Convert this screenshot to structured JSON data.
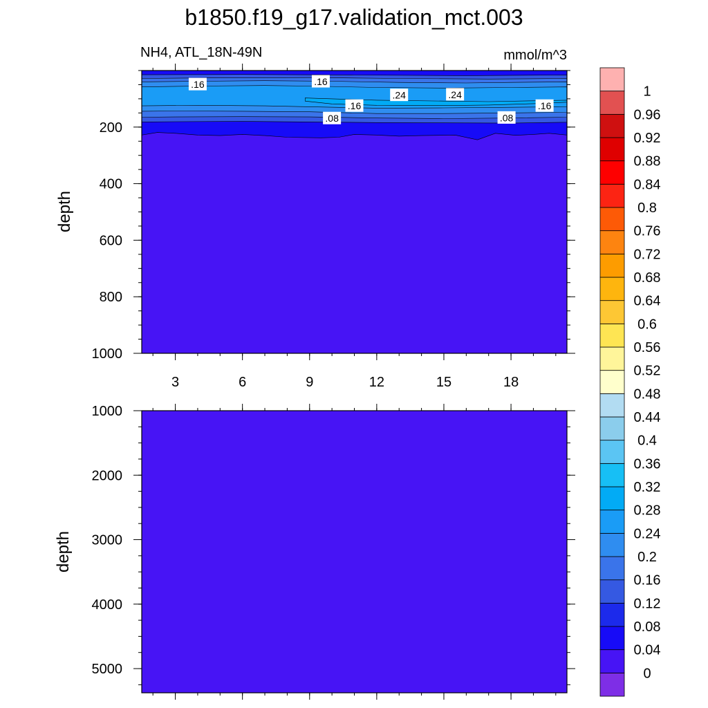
{
  "title": "b1850.f19_g17.validation_mct.003",
  "colors": {
    "levels": [
      "#7e2ee6",
      "#4714f5",
      "#170bf7",
      "#1c2aeb",
      "#3559e2",
      "#3a74ea",
      "#2f8df0",
      "#1a9cf6",
      "#02abf5",
      "#17bff5",
      "#5bc5f3",
      "#8bcdec",
      "#b2dcf2",
      "#ffffcc",
      "#fff59a",
      "#fee553",
      "#fdc734",
      "#feb50e",
      "#fd9c00",
      "#fd8410",
      "#fd5a06",
      "#fc2413",
      "#fe0000",
      "#df0000",
      "#cf1010",
      "#e25151",
      "#feb1b0"
    ],
    "background_fill": "#4714f5",
    "contour_line": "#000000"
  },
  "chart_data": [
    {
      "type": "heatmap",
      "panel": "upper",
      "left_title": "NH4, ATL_18N-49N",
      "right_title": "mmol/m^3",
      "ylabel": "depth",
      "y_reversed": true,
      "ylim": [
        0,
        1000
      ],
      "y_ticks": [
        "200",
        "400",
        "600",
        "800",
        "1000"
      ],
      "x_ticks": [
        "3",
        "6",
        "9",
        "12",
        "15",
        "18"
      ],
      "xlim": [
        1.5,
        20.5
      ],
      "layers": [
        {
          "range": ">0.24",
          "top": [
            [
              8.8,
              97
            ],
            [
              10,
              100
            ],
            [
              12,
              105
            ],
            [
              15,
              108
            ],
            [
              17,
              110
            ],
            [
              19,
              107
            ],
            [
              20.5,
              105
            ]
          ],
          "bottom": [
            [
              20.5,
              112
            ],
            [
              19,
              117
            ],
            [
              17,
              122
            ],
            [
              15,
              124
            ],
            [
              12,
              123
            ],
            [
              10,
              118
            ],
            [
              8.8,
              108
            ]
          ]
        },
        {
          "range": "0.20-0.24",
          "top": [
            [
              1.5,
              58
            ],
            [
              4,
              55
            ],
            [
              7,
              53
            ],
            [
              9,
              55
            ],
            [
              12,
              60
            ],
            [
              15,
              62
            ],
            [
              18,
              60
            ],
            [
              20.5,
              58
            ]
          ],
          "bottom": [
            [
              20.5,
              128
            ],
            [
              18,
              130
            ],
            [
              15,
              132
            ],
            [
              12,
              133
            ],
            [
              9,
              128
            ],
            [
              7,
              125
            ],
            [
              4,
              123
            ],
            [
              1.5,
              125
            ]
          ]
        },
        {
          "range": "0.16-0.20",
          "top": [
            [
              1.5,
              40
            ],
            [
              4,
              38
            ],
            [
              7,
              36
            ],
            [
              10,
              38
            ],
            [
              13,
              42
            ],
            [
              16,
              44
            ],
            [
              18,
              42
            ],
            [
              20.5,
              40
            ]
          ],
          "bottom": [
            [
              20.5,
              148
            ],
            [
              18,
              150
            ],
            [
              15,
              152
            ],
            [
              12,
              152
            ],
            [
              9,
              146
            ],
            [
              6,
              144
            ],
            [
              3,
              143
            ],
            [
              1.5,
              144
            ]
          ]
        },
        {
          "range": "0.12-0.16",
          "top": [
            [
              1.5,
              28
            ],
            [
              5,
              26
            ],
            [
              9,
              25
            ],
            [
              13,
              28
            ],
            [
              17,
              30
            ],
            [
              20.5,
              28
            ]
          ],
          "bottom": [
            [
              20.5,
              165
            ],
            [
              18,
              168
            ],
            [
              15,
              170
            ],
            [
              12,
              168
            ],
            [
              9,
              164
            ],
            [
              6,
              163
            ],
            [
              3,
              164
            ],
            [
              1.5,
              165
            ]
          ]
        },
        {
          "range": "0.08-0.12",
          "top": [
            [
              1.5,
              15
            ],
            [
              6,
              14
            ],
            [
              11,
              16
            ],
            [
              16,
              18
            ],
            [
              20.5,
              16
            ]
          ],
          "bottom": [
            [
              20.5,
              183
            ],
            [
              18,
              186
            ],
            [
              15,
              185
            ],
            [
              12,
              184
            ],
            [
              9,
              182
            ],
            [
              6,
              180
            ],
            [
              3,
              181
            ],
            [
              1.5,
              182
            ]
          ]
        },
        {
          "range": "0.04-0.08",
          "top": [
            [
              1.5,
              0
            ],
            [
              20.5,
              0
            ]
          ],
          "bottom": [
            [
              20.5,
              228
            ],
            [
              19.7,
              222
            ],
            [
              19,
              226
            ],
            [
              18.2,
              229
            ],
            [
              17.3,
              222
            ],
            [
              16.5,
              245
            ],
            [
              15.5,
              228
            ],
            [
              14,
              230
            ],
            [
              13,
              232
            ],
            [
              12,
              228
            ],
            [
              11,
              226
            ],
            [
              10.3,
              236
            ],
            [
              9.5,
              238
            ],
            [
              8,
              236
            ],
            [
              7,
              230
            ],
            [
              6,
              226
            ],
            [
              5,
              230
            ],
            [
              4,
              228
            ],
            [
              3,
              222
            ],
            [
              2.2,
              219
            ],
            [
              1.5,
              228
            ]
          ]
        }
      ],
      "contour_labels": [
        {
          "text": ".16",
          "x": 4,
          "y": 48
        },
        {
          "text": ".16",
          "x": 9.5,
          "y": 38
        },
        {
          "text": ".24",
          "x": 13,
          "y": 86
        },
        {
          "text": ".24",
          "x": 15.5,
          "y": 84
        },
        {
          "text": ".16",
          "x": 11,
          "y": 124
        },
        {
          "text": ".16",
          "x": 19.5,
          "y": 124
        },
        {
          "text": ".08",
          "x": 10,
          "y": 168
        },
        {
          "text": ".08",
          "x": 17.8,
          "y": 166
        }
      ]
    },
    {
      "type": "heatmap",
      "panel": "lower",
      "ylabel": "depth",
      "y_reversed": true,
      "ylim": [
        1000,
        5375
      ],
      "y_ticks": [
        "1000",
        "2000",
        "3000",
        "4000",
        "5000"
      ],
      "xlim": [
        1.5,
        20.5
      ],
      "layers": []
    }
  ],
  "colorbar": {
    "labels": [
      "1",
      "0.96",
      "0.92",
      "0.88",
      "0.84",
      "0.8",
      "0.76",
      "0.72",
      "0.68",
      "0.64",
      "0.6",
      "0.56",
      "0.52",
      "0.48",
      "0.44",
      "0.4",
      "0.36",
      "0.32",
      "0.28",
      "0.24",
      "0.2",
      "0.16",
      "0.12",
      "0.08",
      "0.04",
      "0"
    ]
  }
}
